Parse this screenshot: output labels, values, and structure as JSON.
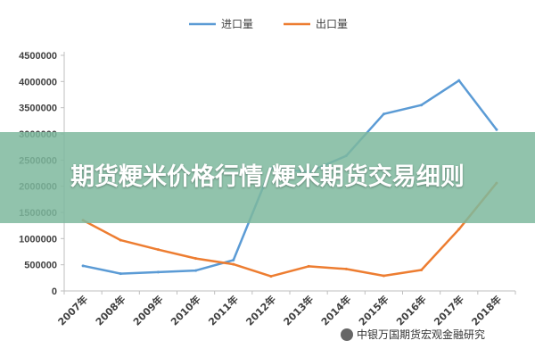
{
  "banner": {
    "title": "期货粳米价格行情/粳米期货交易细则"
  },
  "watermark": {
    "text": "中银万国期货宏观金融研究"
  },
  "chart_data": {
    "type": "line",
    "categories": [
      "2007年",
      "2008年",
      "2009年",
      "2010年",
      "2011年",
      "2012年",
      "2013年",
      "2014年",
      "2015年",
      "2016年",
      "2017年",
      "2018年"
    ],
    "series": [
      {
        "name": "进口量",
        "color": "#5b9bd5",
        "values": [
          480000,
          330000,
          360000,
          390000,
          590000,
          2350000,
          2270000,
          2580000,
          3380000,
          3550000,
          4020000,
          3080000
        ]
      },
      {
        "name": "出口量",
        "color": "#ed7d31",
        "values": [
          1350000,
          970000,
          790000,
          620000,
          510000,
          280000,
          470000,
          420000,
          290000,
          400000,
          1180000,
          2060000
        ]
      }
    ],
    "ylim": [
      0,
      4500000
    ],
    "yticks": [
      "0",
      "500000",
      "1000000",
      "1500000",
      "2000000",
      "2500000",
      "3000000",
      "3500000",
      "4000000",
      "4500000"
    ],
    "legend_position": "top",
    "grid": false
  }
}
